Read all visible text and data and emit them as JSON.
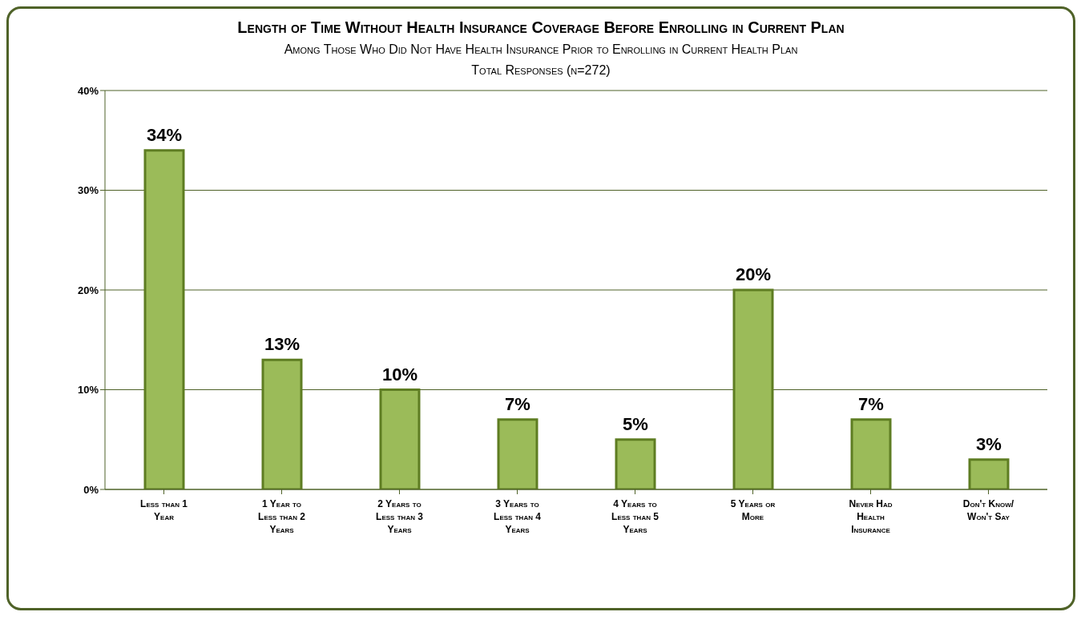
{
  "chart_data": {
    "type": "bar",
    "title": "Length of Time Without Health Insurance Coverage Before Enrolling in Current Plan",
    "subtitle": "Among Those Who Did Not Have Health Insurance Prior to Enrolling in Current Health Plan\nTotal Responses (n=272)",
    "categories": [
      "Less than 1 Year",
      "1 Year to Less than 2 Years",
      "2 Years to Less than 3 Years",
      "3 Years to Less than 4 Years",
      "4 Years to Less than 5 Years",
      "5 Years or More",
      "Never Had Health Insurance",
      "Don't Know/ Won't Say"
    ],
    "values": [
      34,
      13,
      10,
      7,
      5,
      20,
      7,
      3
    ],
    "value_labels": [
      "34%",
      "13%",
      "10%",
      "7%",
      "5%",
      "20%",
      "7%",
      "3%"
    ],
    "color": "#9bbb59",
    "ylim": [
      0,
      40
    ],
    "yticks": [
      {
        "value": 0,
        "label": "0%"
      },
      {
        "value": 10,
        "label": "10%"
      },
      {
        "value": 20,
        "label": "20%"
      },
      {
        "value": 30,
        "label": "30%"
      },
      {
        "value": 40,
        "label": "40%"
      }
    ],
    "grid": "y"
  }
}
